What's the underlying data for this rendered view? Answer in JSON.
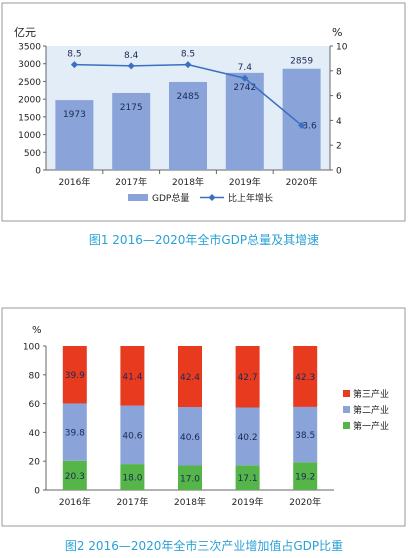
{
  "chart_data": [
    {
      "type": "bar",
      "caption": "图1 2016—2020年全市GDP总量及其增速",
      "categories": [
        "2016年",
        "2017年",
        "2018年",
        "2019年",
        "2020年"
      ],
      "ylabel_left": "亿元",
      "ylabel_right": "%",
      "ylim_left": [
        0,
        3500
      ],
      "ylim_right": [
        0,
        10
      ],
      "yticks_left": [
        "0",
        "500",
        "1000",
        "1500",
        "2000",
        "2500",
        "3000",
        "3500"
      ],
      "yticks_right": [
        "0",
        "2",
        "4",
        "6",
        "8",
        "10"
      ],
      "grid": false,
      "legend_position": "bottom",
      "series": [
        {
          "name": "GDP总量",
          "type": "bar",
          "axis": "left",
          "color": "#8aa3d9",
          "values": [
            1973,
            2175,
            2485,
            2742,
            2859
          ],
          "labels": [
            "1973",
            "2175",
            "2485",
            "2742",
            "2859"
          ]
        },
        {
          "name": "比上年增长",
          "type": "line",
          "axis": "right",
          "color": "#3a6fc1",
          "values": [
            8.5,
            8.4,
            8.5,
            7.4,
            3.6
          ],
          "labels": [
            "8.5",
            "8.4",
            "8.5",
            "7.4",
            "3.6"
          ]
        }
      ]
    },
    {
      "type": "bar",
      "stacked": true,
      "caption": "图2 2016—2020年全市三次产业增加值占GDP比重",
      "categories": [
        "2016年",
        "2017年",
        "2018年",
        "2019年",
        "2020年"
      ],
      "ylabel": "%",
      "ylim": [
        0,
        100
      ],
      "yticks": [
        "0",
        "20",
        "40",
        "60",
        "80",
        "100"
      ],
      "grid": false,
      "legend_position": "right",
      "series": [
        {
          "name": "第一产业",
          "color": "#55b548",
          "values": [
            20.3,
            18.0,
            17.0,
            17.1,
            19.2
          ],
          "labels": [
            "20.3",
            "18.0",
            "17.0",
            "17.1",
            "19.2"
          ]
        },
        {
          "name": "第二产业",
          "color": "#8aa3d9",
          "values": [
            39.8,
            40.6,
            40.6,
            40.2,
            38.5
          ],
          "labels": [
            "39.8",
            "40.6",
            "40.6",
            "40.2",
            "38.5"
          ]
        },
        {
          "name": "第三产业",
          "color": "#e83a1f",
          "values": [
            39.9,
            41.4,
            42.4,
            42.7,
            42.3
          ],
          "labels": [
            "39.9",
            "41.4",
            "42.4",
            "42.7",
            "42.3"
          ]
        }
      ]
    }
  ]
}
